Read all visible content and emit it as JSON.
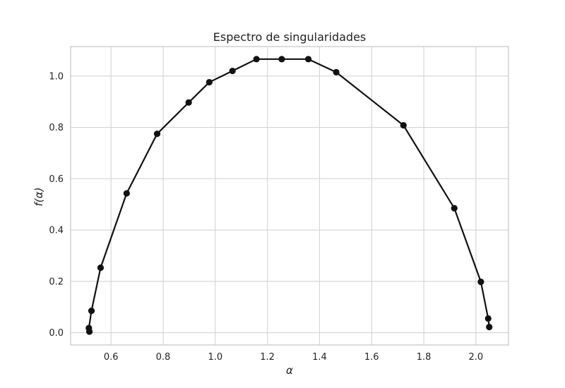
{
  "chart_data": {
    "type": "line",
    "title": "Espectro de singularidades",
    "xlabel": "α",
    "ylabel": "f(α)",
    "xlim": [
      0.445,
      2.125
    ],
    "ylim": [
      -0.048,
      1.115
    ],
    "xticks": [
      0.6,
      0.8,
      1.0,
      1.2,
      1.4,
      1.6,
      1.8,
      2.0
    ],
    "xtick_labels": [
      "0.6",
      "0.8",
      "1.0",
      "1.2",
      "1.4",
      "1.6",
      "1.8",
      "2.0"
    ],
    "yticks": [
      0.0,
      0.2,
      0.4,
      0.6,
      0.8,
      1.0
    ],
    "ytick_labels": [
      "0.0",
      "0.2",
      "0.4",
      "0.6",
      "0.8",
      "1.0"
    ],
    "grid": true,
    "legend": "none",
    "series": [
      {
        "color": "#111111",
        "marker": "circle",
        "x": [
          0.517,
          0.515,
          0.525,
          0.56,
          0.66,
          0.777,
          0.898,
          0.977,
          1.066,
          1.158,
          1.255,
          1.357,
          1.464,
          1.722,
          1.917,
          2.019,
          2.047,
          2.051
        ],
        "y": [
          0.004,
          0.018,
          0.085,
          0.253,
          0.543,
          0.775,
          0.897,
          0.976,
          1.02,
          1.066,
          1.066,
          1.066,
          1.015,
          0.808,
          0.485,
          0.198,
          0.055,
          0.022
        ]
      }
    ]
  }
}
